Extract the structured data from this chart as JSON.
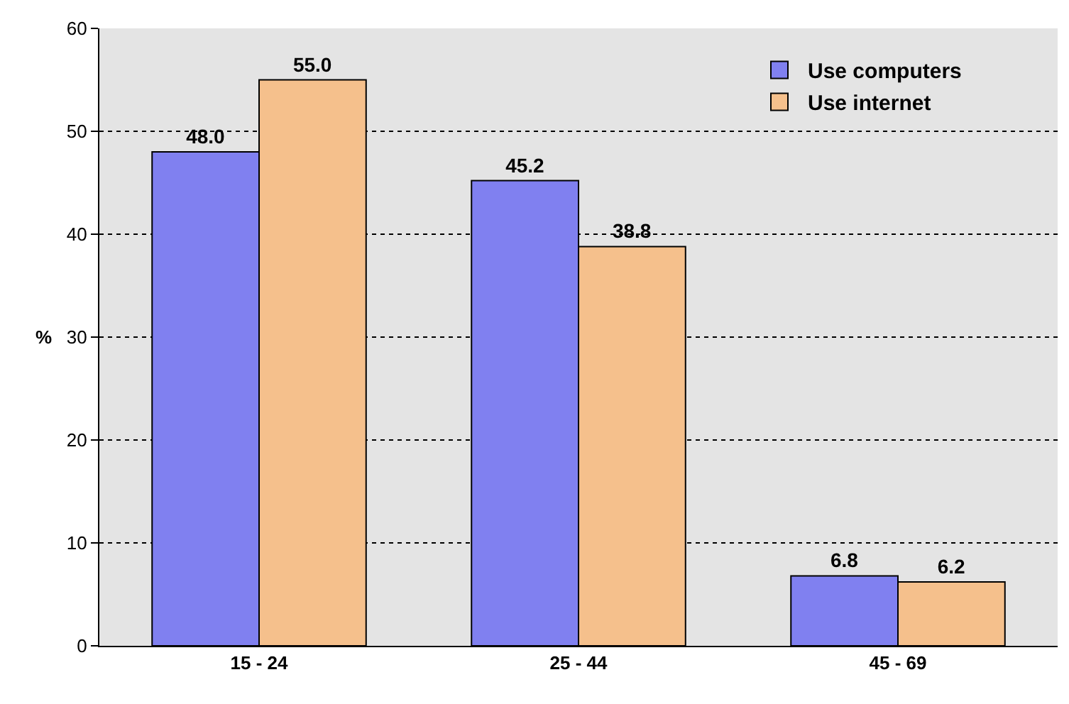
{
  "chart_data": {
    "type": "bar",
    "ylabel": "%",
    "categories": [
      "15 - 24",
      "25 - 44",
      "45 - 69"
    ],
    "series": [
      {
        "name": "Use computers",
        "color": "#8080f0",
        "values": [
          48.0,
          45.2,
          6.8
        ],
        "value_labels": [
          "48.0",
          "45.2",
          "6.8"
        ]
      },
      {
        "name": "Use internet",
        "color": "#f5c08c",
        "values": [
          55.0,
          38.8,
          6.2
        ],
        "value_labels": [
          "55.0",
          "38.8",
          "6.2"
        ]
      }
    ],
    "ylim": [
      0,
      60
    ],
    "yticks": [
      0,
      10,
      20,
      30,
      40,
      50,
      60
    ],
    "grid": "y",
    "legend": "top right"
  }
}
